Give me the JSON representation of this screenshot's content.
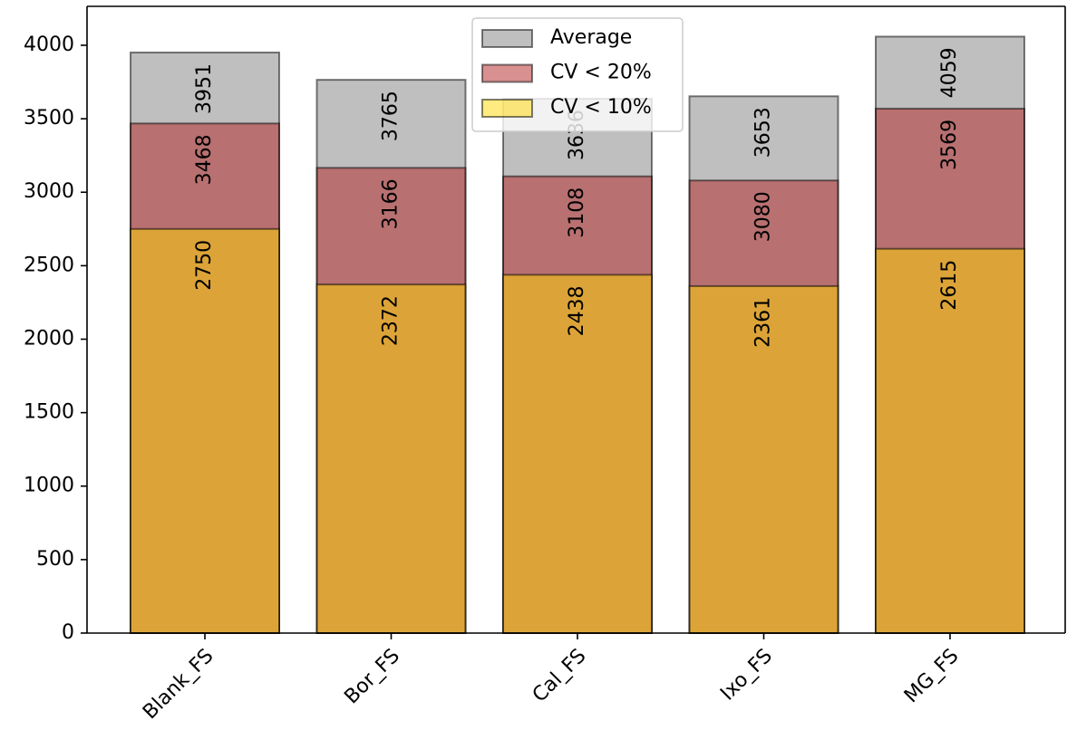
{
  "chart_data": {
    "type": "bar",
    "categories": [
      "Blank_FS",
      "Bor_FS",
      "Cal_FS",
      "Ixo_FS",
      "MG_FS"
    ],
    "series": [
      {
        "name": "Average",
        "color": "#808080",
        "values": [
          3951,
          3765,
          3636,
          3653,
          4059
        ]
      },
      {
        "name": "CV < 20%",
        "color": "#b22222",
        "values": [
          3468,
          3166,
          3108,
          3080,
          3569
        ]
      },
      {
        "name": "CV < 10%",
        "color": "#ffd700",
        "values": [
          2750,
          2372,
          2438,
          2361,
          2615
        ]
      }
    ],
    "alpha": 0.5,
    "overlap": true,
    "ylim": [
      0,
      4265
    ],
    "yticks": [
      0,
      500,
      1000,
      1500,
      2000,
      2500,
      3000,
      3500,
      4000
    ],
    "legend": "upper center",
    "grid": false
  }
}
